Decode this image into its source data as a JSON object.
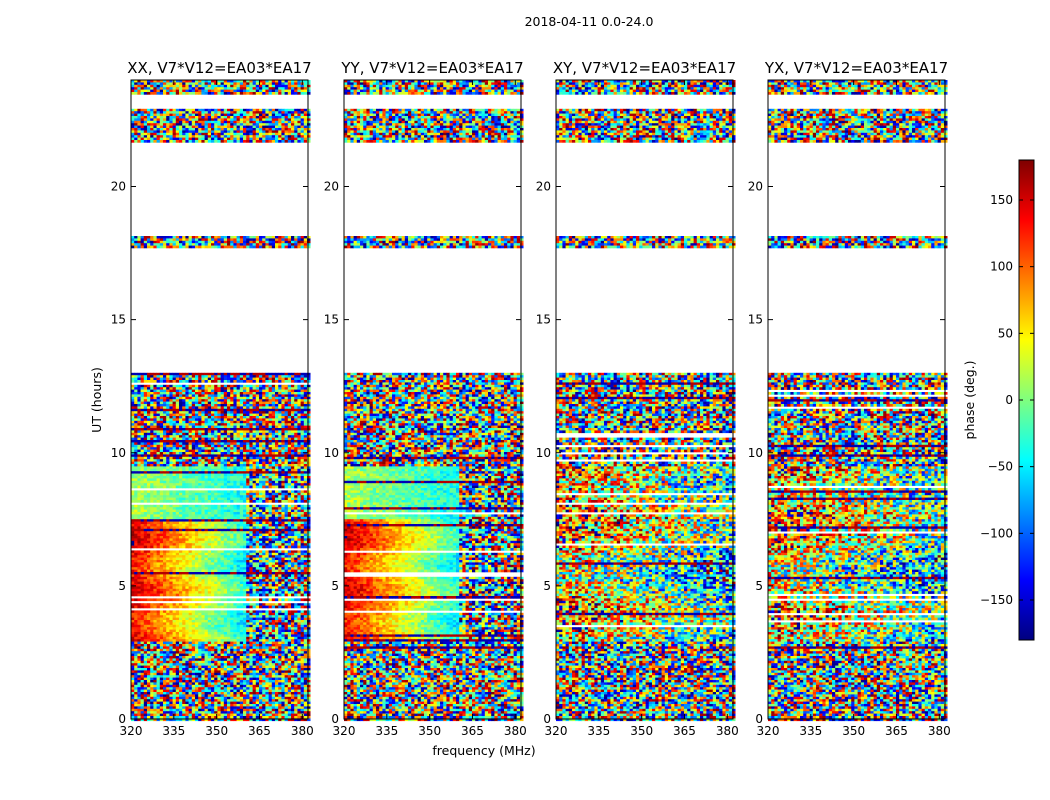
{
  "figure": {
    "suptitle": "2018-04-11 0.0-24.0",
    "xlabel": "frequency (MHz)",
    "ylabel": "UT (hours)"
  },
  "colorbar": {
    "label": "phase (deg.)",
    "range": [
      -180,
      180
    ],
    "ticks": [
      150,
      100,
      50,
      0,
      -50,
      -100,
      -150
    ],
    "tick_labels": [
      "150",
      "100",
      "50",
      "0",
      "−50",
      "−100",
      "−150"
    ],
    "colormap": "jet",
    "colors": [
      "#00007f",
      "#0000ff",
      "#007fff",
      "#00ffff",
      "#7fff7f",
      "#ffff00",
      "#ff7f00",
      "#ff0000",
      "#7f0000"
    ]
  },
  "chart_data": {
    "type": "heatmap",
    "title": "2018-04-11 0.0-24.0",
    "xlabel": "frequency (MHz)",
    "ylabel": "UT (hours)",
    "xlim": [
      320,
      382
    ],
    "ylim": [
      0,
      24
    ],
    "x_ticks": [
      320,
      335,
      350,
      365,
      380
    ],
    "x_tick_labels": [
      "320",
      "335",
      "350",
      "365",
      "380"
    ],
    "y_ticks": [
      0,
      5,
      10,
      15,
      20
    ],
    "y_tick_labels": [
      "0",
      "5",
      "10",
      "15",
      "20"
    ],
    "blank_ut_ranges": [
      [
        13.0,
        17.7
      ],
      [
        18.1,
        21.7
      ],
      [
        22.9,
        23.5
      ]
    ],
    "panels": [
      {
        "title": "XX, V7*V12=EA03*EA17",
        "polarization": "XX",
        "coherence": "strong"
      },
      {
        "title": "YY, V7*V12=EA03*EA17",
        "polarization": "YY",
        "coherence": "strong"
      },
      {
        "title": "XY, V7*V12=EA03*EA17",
        "polarization": "XY",
        "coherence": "weak"
      },
      {
        "title": "YX, V7*V12=EA03*EA17",
        "polarization": "YX",
        "coherence": "weak"
      }
    ]
  }
}
